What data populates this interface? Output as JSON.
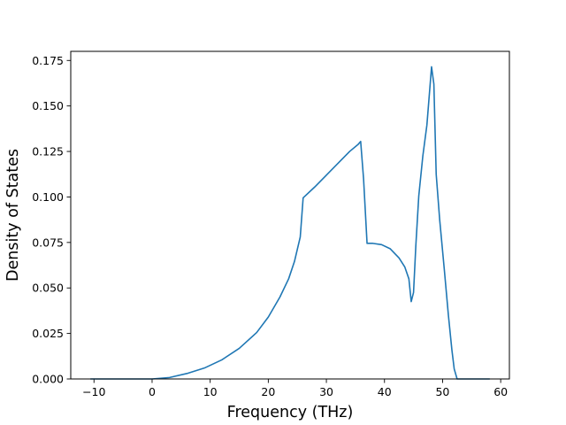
{
  "chart_data": {
    "type": "line",
    "title": "",
    "xlabel": "Frequency (THz)",
    "ylabel": "Density of States",
    "xlim": [
      -14,
      61.5
    ],
    "ylim": [
      0,
      0.18
    ],
    "xticks": [
      -10,
      0,
      10,
      20,
      30,
      40,
      50,
      60
    ],
    "xtick_labels": [
      "−10",
      "0",
      "10",
      "20",
      "30",
      "40",
      "50",
      "60"
    ],
    "yticks": [
      0.0,
      0.025,
      0.05,
      0.075,
      0.1,
      0.125,
      0.15,
      0.175
    ],
    "ytick_labels": [
      "0.000",
      "0.025",
      "0.050",
      "0.075",
      "0.100",
      "0.125",
      "0.150",
      "0.175"
    ],
    "grid": false,
    "legend": "none",
    "series": [
      {
        "color": "#1f77b4",
        "x": [
          -10.5,
          -5,
          0,
          3,
          6,
          9,
          12,
          15,
          18,
          20,
          22,
          23.5,
          24.5,
          25.5,
          26.0,
          28,
          30,
          32,
          34,
          35.5,
          35.9,
          36.4,
          37.0,
          38,
          39.5,
          41,
          42.5,
          43.5,
          44.2,
          44.6,
          45.0,
          45.4,
          45.9,
          46.6,
          47.3,
          48.1,
          48.5,
          48.9,
          49.5,
          50.3,
          51.0,
          51.6,
          52.0,
          52.5,
          53,
          55,
          58
        ],
        "y": [
          0.0,
          0.0,
          0.0,
          0.0008,
          0.003,
          0.006,
          0.0105,
          0.0168,
          0.0255,
          0.034,
          0.045,
          0.055,
          0.0645,
          0.078,
          0.0995,
          0.1055,
          0.112,
          0.1185,
          0.125,
          0.129,
          0.1305,
          0.11,
          0.0745,
          0.0745,
          0.0738,
          0.0715,
          0.0665,
          0.0615,
          0.055,
          0.0425,
          0.0475,
          0.0735,
          0.1005,
          0.1225,
          0.1395,
          0.1715,
          0.162,
          0.1125,
          0.0875,
          0.06,
          0.035,
          0.016,
          0.0055,
          0.0,
          0.0,
          0.0,
          0.0
        ]
      }
    ]
  }
}
